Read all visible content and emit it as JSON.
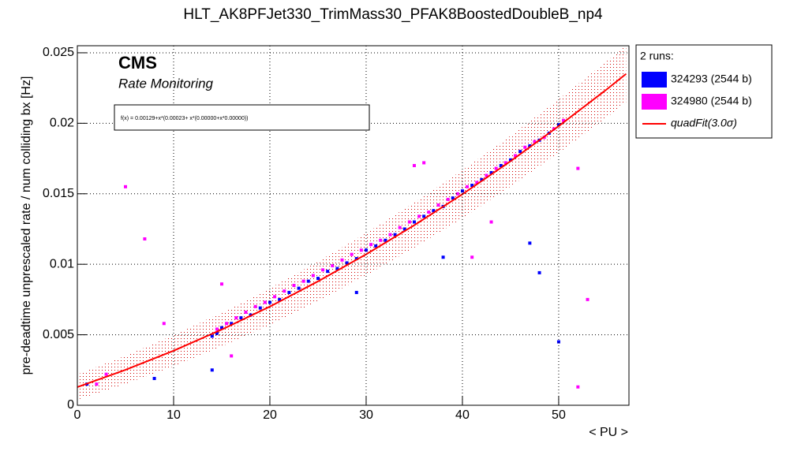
{
  "chart_data": {
    "type": "scatter",
    "title": "HLT_AK8PFJet330_TrimMass30_PFAK8BoostedDoubleB_np4",
    "x_label": "< PU >",
    "y_label": "pre-deadtime unprescaled rate / num colliding bx [Hz]",
    "annotations": [
      "CMS",
      "Rate Monitoring",
      "f(x) = 0.00129+x*(0.00023+ x*(0.00000+x*0.00000))"
    ],
    "legend_title": "2 runs:",
    "legend": "right",
    "grid": true,
    "xlim": [
      0,
      57.3
    ],
    "ylim": [
      0,
      0.0255
    ],
    "xticks": [
      0,
      10,
      20,
      30,
      40,
      50
    ],
    "yticks": [
      0,
      0.005,
      0.01,
      0.015,
      0.02,
      0.025
    ],
    "series": [
      {
        "name": "324293 (2544 b)",
        "color": "#0000ff",
        "type": "scatter",
        "x": [
          14,
          14.5,
          15,
          16,
          17,
          18,
          19,
          20,
          21,
          22,
          23,
          24,
          25,
          26,
          27,
          28,
          29,
          30,
          31,
          32,
          33,
          34,
          35,
          36,
          37,
          38,
          39,
          40,
          41,
          42,
          43,
          44,
          45,
          46,
          47,
          48,
          49,
          50,
          14,
          29,
          38,
          47,
          48,
          50,
          1,
          8
        ],
        "values": [
          0.0049,
          0.0051,
          0.0055,
          0.0058,
          0.0062,
          0.0064,
          0.0069,
          0.0073,
          0.0075,
          0.008,
          0.0083,
          0.0088,
          0.009,
          0.0095,
          0.0097,
          0.0101,
          0.0104,
          0.011,
          0.0113,
          0.0117,
          0.0121,
          0.0125,
          0.013,
          0.0134,
          0.0138,
          0.0141,
          0.0147,
          0.0152,
          0.0156,
          0.016,
          0.0165,
          0.017,
          0.0174,
          0.018,
          0.0184,
          0.0188,
          0.0193,
          0.0199,
          0.0025,
          0.008,
          0.0105,
          0.0115,
          0.0094,
          0.0045,
          0.0015,
          0.0019
        ]
      },
      {
        "name": "324980 (2544 b)",
        "color": "#ff00ff",
        "type": "scatter",
        "x": [
          14.5,
          15.5,
          16.5,
          17.5,
          18.5,
          19.5,
          20.5,
          21.5,
          22.5,
          23.5,
          24.5,
          25.5,
          26.5,
          27.5,
          28.5,
          29.5,
          30.5,
          31.5,
          32.5,
          33.5,
          34.5,
          35.5,
          36.5,
          37.5,
          38.5,
          39.5,
          40.5,
          41.5,
          42.5,
          43.5,
          44.5,
          45.5,
          46.5,
          47.5,
          48.5,
          49.5,
          50.5,
          5,
          7,
          35,
          36,
          15,
          52,
          53,
          52,
          43,
          41,
          2,
          9,
          3,
          16
        ],
        "values": [
          0.0054,
          0.0058,
          0.0062,
          0.0066,
          0.007,
          0.0073,
          0.0077,
          0.0081,
          0.0085,
          0.0088,
          0.0092,
          0.0096,
          0.0099,
          0.0103,
          0.0107,
          0.011,
          0.0114,
          0.0117,
          0.0121,
          0.0126,
          0.013,
          0.0134,
          0.0137,
          0.0142,
          0.0146,
          0.015,
          0.0155,
          0.0158,
          0.0163,
          0.0168,
          0.0172,
          0.0177,
          0.0183,
          0.0187,
          0.019,
          0.0196,
          0.0202,
          0.0155,
          0.0118,
          0.017,
          0.0172,
          0.0086,
          0.0168,
          0.0075,
          0.0013,
          0.013,
          0.0105,
          0.0015,
          0.0058,
          0.0022,
          0.0035
        ]
      },
      {
        "name": "quadFit(3.0σ)",
        "color": "#ff0000",
        "type": "line",
        "x": [
          0,
          5,
          10,
          15,
          20,
          25,
          30,
          35,
          40,
          45,
          50,
          55,
          57
        ],
        "values": [
          0.00129,
          0.00251,
          0.00387,
          0.00537,
          0.007,
          0.00879,
          0.01071,
          0.01277,
          0.01497,
          0.01731,
          0.0198,
          0.02241,
          0.0235
        ],
        "band_upper": [
          0.00219,
          0.00351,
          0.00497,
          0.00657,
          0.0083,
          0.01019,
          0.01221,
          0.01437,
          0.01667,
          0.01911,
          0.0217,
          0.02441,
          0.0255
        ],
        "band_lower": [
          0.00039,
          0.00151,
          0.00277,
          0.00417,
          0.0057,
          0.00739,
          0.00921,
          0.01117,
          0.01327,
          0.01551,
          0.0179,
          0.02041,
          0.0215
        ]
      }
    ]
  }
}
